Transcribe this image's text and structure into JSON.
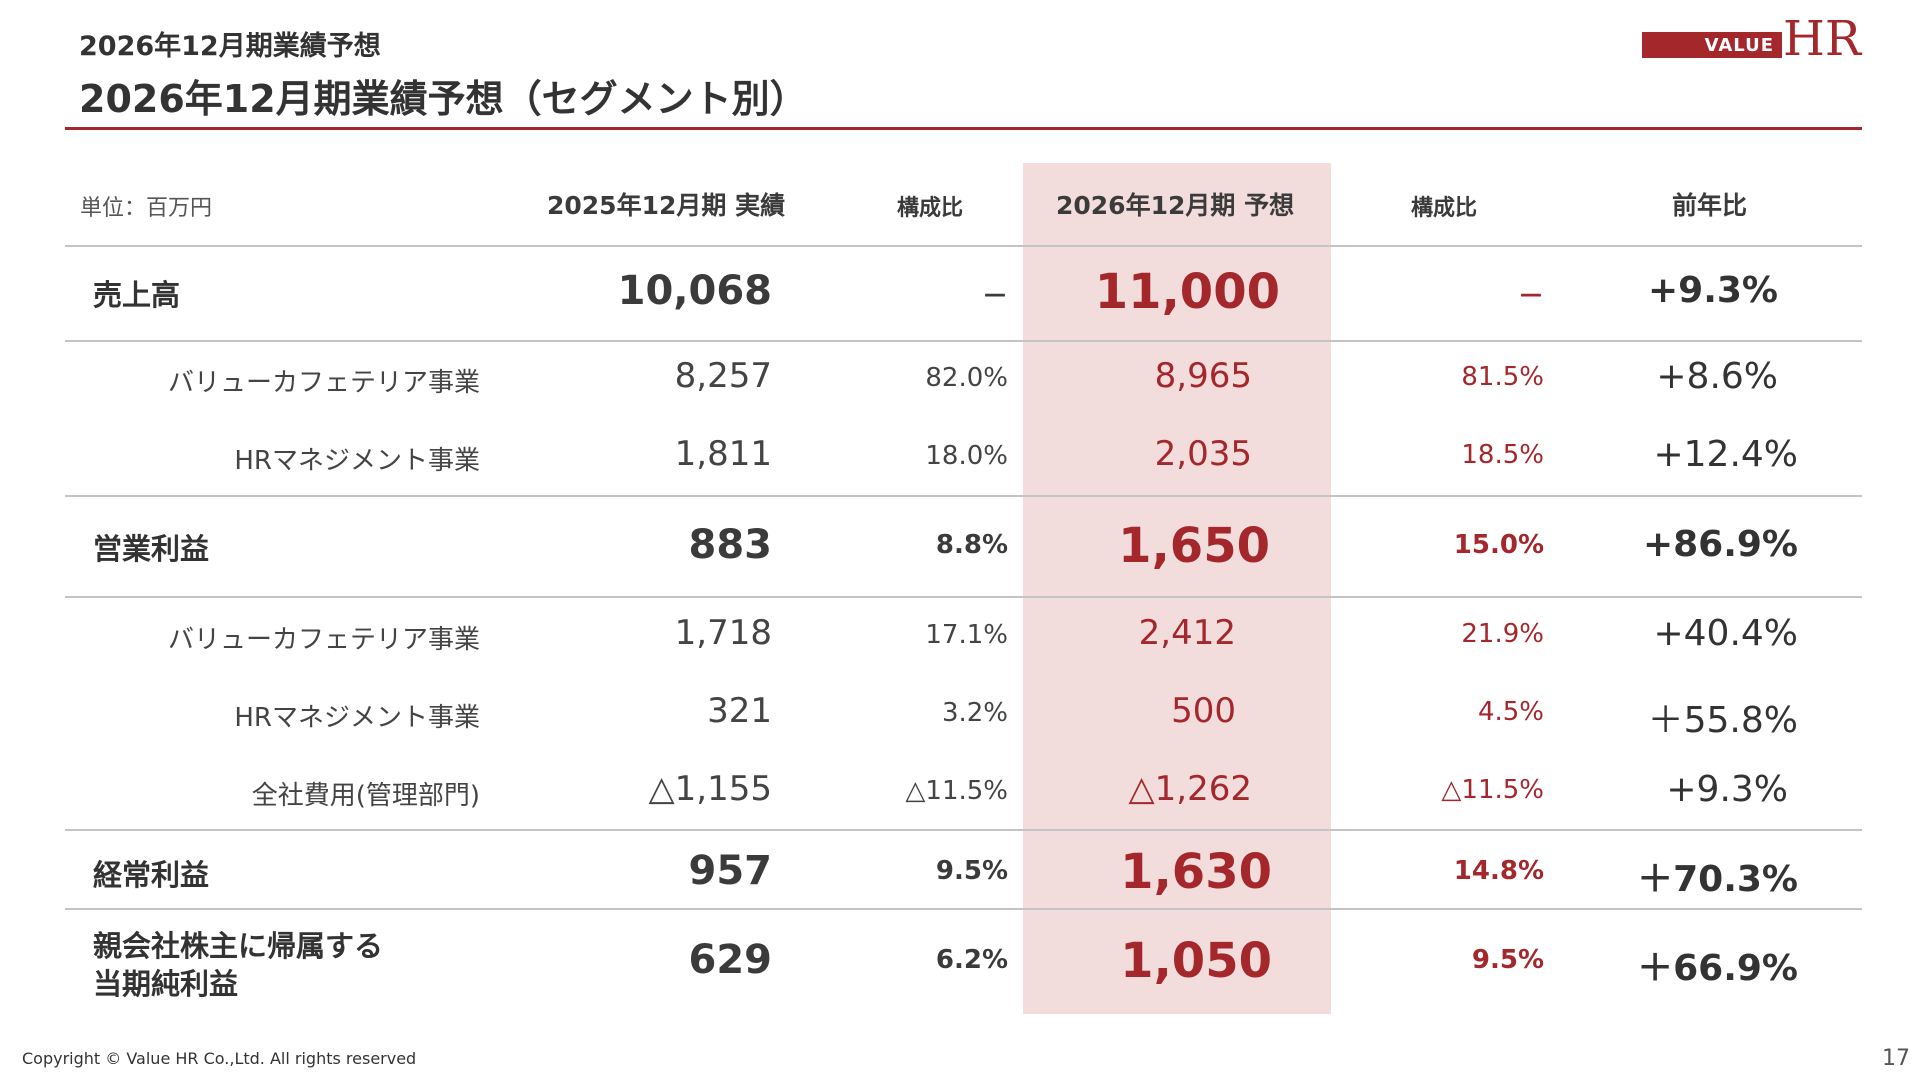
{
  "header": {
    "subtitle": "2026年12月期業績予想",
    "title": "2026年12月期業績予想（セグメント別）"
  },
  "logo": {
    "value": "VALUE",
    "hr": "HR"
  },
  "colors": {
    "accent": "#a3272b",
    "highlight": "#f2dcdc"
  },
  "table": {
    "unit": "単位：百万円",
    "columns": [
      "2025年12月期 実績",
      "構成比",
      "2026年12月期 予想",
      "構成比",
      "前年比"
    ],
    "rows": [
      {
        "label": "売上高",
        "actual": "10,068",
        "actual_ratio": "－",
        "forecast": "11,000",
        "forecast_ratio": "－",
        "yoy": "+9.3%"
      },
      {
        "label": "バリューカフェテリア事業",
        "actual": "8,257",
        "actual_ratio": "82.0%",
        "forecast": "8,965",
        "forecast_ratio": "81.5%",
        "yoy": "+8.6%"
      },
      {
        "label": "HRマネジメント事業",
        "actual": "1,811",
        "actual_ratio": "18.0%",
        "forecast": "2,035",
        "forecast_ratio": "18.5%",
        "yoy": "+12.4%"
      },
      {
        "label": "営業利益",
        "actual": "883",
        "actual_ratio": "8.8%",
        "forecast": "1,650",
        "forecast_ratio": "15.0%",
        "yoy": "+86.9%"
      },
      {
        "label": "バリューカフェテリア事業",
        "actual": "1,718",
        "actual_ratio": "17.1%",
        "forecast": "2,412",
        "forecast_ratio": "21.9%",
        "yoy": "+40.4%"
      },
      {
        "label": "HRマネジメント事業",
        "actual": "321",
        "actual_ratio": "3.2%",
        "forecast": "500",
        "forecast_ratio": "4.5%",
        "yoy": "＋55.8%"
      },
      {
        "label": "全社費用(管理部門)",
        "actual": "△1,155",
        "actual_ratio": "△11.5%",
        "forecast": "△1,262",
        "forecast_ratio": "△11.5%",
        "yoy": "+9.3%"
      },
      {
        "label": "経常利益",
        "actual": "957",
        "actual_ratio": "9.5%",
        "forecast": "1,630",
        "forecast_ratio": "14.8%",
        "yoy": "＋70.3%"
      },
      {
        "label_line1": "親会社株主に帰属する",
        "label_line2": "当期純利益",
        "actual": "629",
        "actual_ratio": "6.2%",
        "forecast": "1,050",
        "forecast_ratio": "9.5%",
        "yoy": "＋66.9%"
      }
    ]
  },
  "footer": {
    "copyright": "Copyright © Value HR Co.,Ltd. All rights reserved",
    "page": "17"
  }
}
